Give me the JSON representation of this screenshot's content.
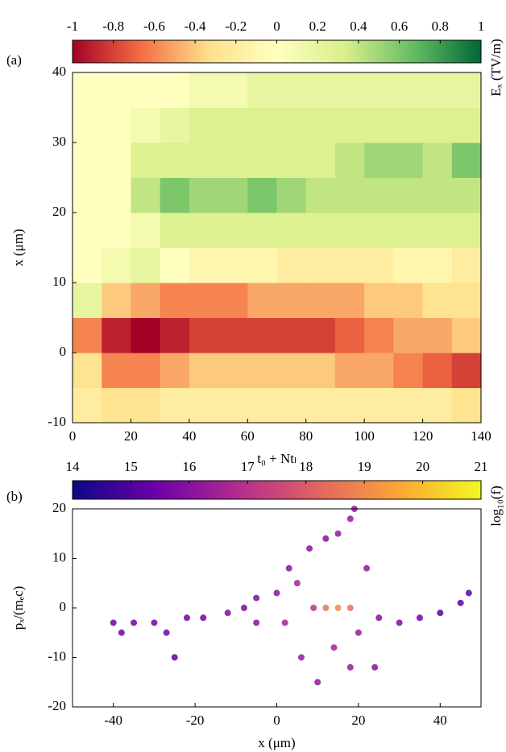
{
  "chart_data": [
    {
      "type": "heatmap",
      "panel_label": "(a)",
      "xlabel": "t₀ + Ntₗ",
      "ylabel": "x (μm)",
      "colorbar_label": "Eₓ (TV/m)",
      "xlim": [
        0,
        140
      ],
      "xticks": [
        0,
        20,
        40,
        60,
        80,
        100,
        120,
        140
      ],
      "ylim": [
        -10,
        40
      ],
      "yticks": [
        -10,
        0,
        10,
        20,
        30,
        40
      ],
      "clim": [
        -1,
        1
      ],
      "cbticks": [
        -1,
        -0.8,
        -0.6,
        -0.4,
        -0.2,
        0,
        0.2,
        0.4,
        0.6,
        0.8,
        1
      ],
      "colormap": [
        "#a50026",
        "#f46d43",
        "#fee08b",
        "#ffffbf",
        "#d9ef8b",
        "#66bd63",
        "#006837"
      ],
      "xbins": [
        0,
        10,
        20,
        30,
        40,
        50,
        60,
        70,
        80,
        90,
        100,
        110,
        120,
        130,
        140
      ],
      "ybins": [
        -10,
        -5,
        0,
        5,
        10,
        15,
        20,
        25,
        30,
        35,
        40
      ],
      "z": [
        [
          -0.2,
          -0.3,
          -0.3,
          -0.2,
          -0.2,
          -0.2,
          -0.2,
          -0.2,
          -0.2,
          -0.2,
          -0.2,
          -0.2,
          -0.2,
          -0.3
        ],
        [
          -0.3,
          -0.6,
          -0.6,
          -0.5,
          -0.4,
          -0.4,
          -0.4,
          -0.4,
          -0.4,
          -0.5,
          -0.5,
          -0.6,
          -0.7,
          -0.8
        ],
        [
          -0.6,
          -0.9,
          -1,
          -0.9,
          -0.8,
          -0.8,
          -0.8,
          -0.8,
          -0.8,
          -0.7,
          -0.6,
          -0.5,
          -0.5,
          -0.4
        ],
        [
          0.2,
          -0.4,
          -0.5,
          -0.6,
          -0.6,
          -0.6,
          -0.5,
          -0.5,
          -0.5,
          -0.5,
          -0.4,
          -0.4,
          -0.3,
          -0.3
        ],
        [
          0,
          0.1,
          0.2,
          0,
          -0.1,
          -0.1,
          -0.1,
          -0.2,
          -0.2,
          -0.2,
          -0.2,
          -0.1,
          -0.1,
          -0.2
        ],
        [
          0,
          0,
          0.1,
          0.3,
          0.3,
          0.3,
          0.3,
          0.3,
          0.3,
          0.3,
          0.3,
          0.3,
          0.3,
          0.3
        ],
        [
          0,
          0,
          0.4,
          0.6,
          0.5,
          0.5,
          0.6,
          0.5,
          0.4,
          0.4,
          0.4,
          0.4,
          0.4,
          0.4
        ],
        [
          0,
          0,
          0.3,
          0.3,
          0.3,
          0.3,
          0.3,
          0.3,
          0.3,
          0.4,
          0.5,
          0.5,
          0.4,
          0.6
        ],
        [
          0,
          0,
          0.1,
          0.2,
          0.3,
          0.3,
          0.3,
          0.3,
          0.3,
          0.3,
          0.3,
          0.3,
          0.3,
          0.3
        ],
        [
          0,
          0,
          0,
          0,
          0.1,
          0.1,
          0.2,
          0.2,
          0.2,
          0.2,
          0.2,
          0.2,
          0.2,
          0.2
        ]
      ]
    },
    {
      "type": "scatter",
      "panel_label": "(b)",
      "xlabel": "x (μm)",
      "ylabel": "pₓ/(mₑc)",
      "colorbar_label": "log₁₀(f)",
      "xlim": [
        -50,
        50
      ],
      "xticks": [
        -40,
        -20,
        0,
        20,
        40
      ],
      "ylim": [
        -20,
        20
      ],
      "yticks": [
        -20,
        -10,
        0,
        10,
        20
      ],
      "clim": [
        14,
        21
      ],
      "cbticks": [
        14,
        15,
        16,
        17,
        18,
        19,
        20,
        21
      ],
      "colormap": [
        "#0d0887",
        "#6a00a8",
        "#b12a90",
        "#e16462",
        "#fca636",
        "#f0f921"
      ],
      "x": [
        -40,
        -38,
        -35,
        -30,
        -27,
        -25,
        -22,
        -18,
        -12,
        -8,
        -5,
        0,
        3,
        8,
        12,
        15,
        18,
        19,
        2,
        5,
        6,
        10,
        9,
        12,
        15,
        18,
        14,
        18,
        20,
        22,
        25,
        30,
        35,
        40,
        45,
        47,
        -5,
        24
      ],
      "y": [
        -3,
        -5,
        -3,
        -3,
        -5,
        -10,
        -2,
        -2,
        -1,
        0,
        2,
        3,
        8,
        12,
        14,
        15,
        18,
        20,
        -3,
        5,
        -10,
        -15,
        0,
        0,
        0,
        0,
        -8,
        -12,
        -5,
        8,
        -2,
        -3,
        -2,
        -1,
        1,
        3,
        -3,
        -12
      ],
      "c": [
        15.5,
        15.5,
        15.5,
        15.5,
        15.5,
        15.3,
        15.5,
        15.5,
        15.8,
        15.8,
        15.8,
        16,
        16,
        16,
        16,
        16.2,
        16.2,
        16.2,
        16.5,
        16.5,
        16.3,
        16.2,
        17,
        18.5,
        19,
        18.5,
        16.5,
        16.3,
        16.3,
        16.2,
        16,
        15.8,
        15.5,
        15.2,
        15.2,
        15.2,
        16,
        16
      ]
    }
  ]
}
